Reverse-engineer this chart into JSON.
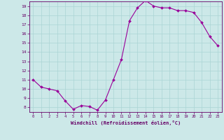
{
  "x": [
    0,
    1,
    2,
    3,
    4,
    5,
    6,
    7,
    8,
    9,
    10,
    11,
    12,
    13,
    14,
    15,
    16,
    17,
    18,
    19,
    20,
    21,
    22,
    23
  ],
  "y": [
    11.0,
    10.2,
    10.0,
    9.8,
    8.7,
    7.8,
    8.2,
    8.1,
    7.7,
    8.8,
    11.0,
    13.2,
    17.4,
    18.8,
    19.6,
    19.0,
    18.8,
    18.8,
    18.5,
    18.5,
    18.3,
    17.2,
    15.7,
    14.7
  ],
  "xlabel": "Windchill (Refroidissement éolien,°C)",
  "ylim": [
    7.5,
    19.5
  ],
  "xlim": [
    -0.5,
    23.5
  ],
  "yticks": [
    8,
    9,
    10,
    11,
    12,
    13,
    14,
    15,
    16,
    17,
    18,
    19
  ],
  "xticks": [
    0,
    1,
    2,
    3,
    4,
    5,
    6,
    7,
    8,
    9,
    10,
    11,
    12,
    13,
    14,
    15,
    16,
    17,
    18,
    19,
    20,
    21,
    22,
    23
  ],
  "line_color": "#990099",
  "marker_color": "#990099",
  "bg_color": "#cce8e8",
  "grid_color": "#aad4d4",
  "spine_color": "#660066",
  "tick_color": "#660066",
  "xlabel_color": "#660066"
}
